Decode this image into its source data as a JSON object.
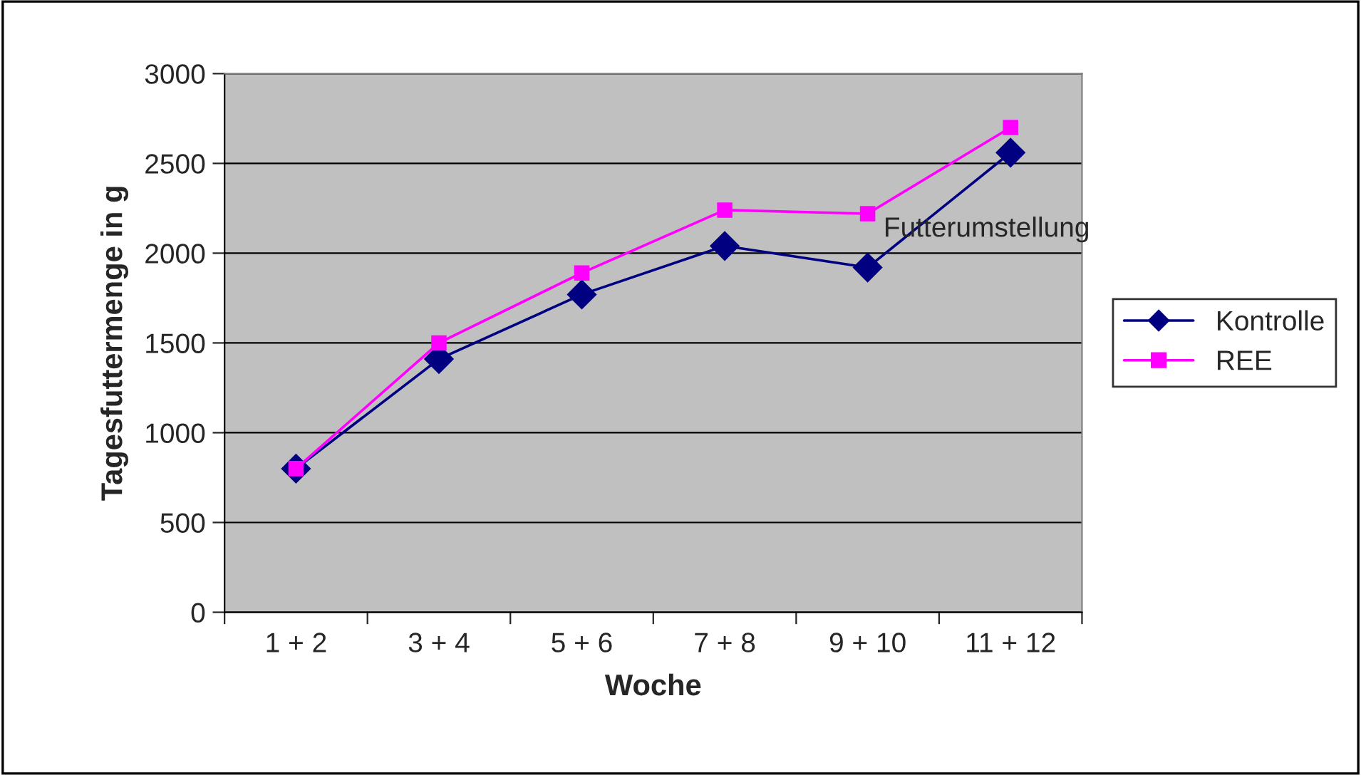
{
  "chart_data": {
    "type": "line",
    "xlabel": "Woche",
    "ylabel": "Tagesfuttermenge in g",
    "categories": [
      "1 + 2",
      "3 + 4",
      "5 + 6",
      "7 + 8",
      "9 + 10",
      "11 + 12"
    ],
    "series": [
      {
        "name": "Kontrolle",
        "color": "#000080",
        "marker": "diamond",
        "values": [
          800,
          1410,
          1770,
          2040,
          1920,
          2560
        ]
      },
      {
        "name": "REE",
        "color": "#ff00ff",
        "marker": "square",
        "values": [
          800,
          1500,
          1890,
          2240,
          2220,
          2700
        ]
      }
    ],
    "ylim": [
      0,
      3000
    ],
    "yticks": [
      0,
      500,
      1000,
      1500,
      2000,
      2500,
      3000
    ],
    "grid": "y",
    "legend": "right",
    "line_style": "solid",
    "annotations": [
      {
        "text": "Futterumstellung",
        "x": "9 + 10",
        "y": 2220
      }
    ]
  }
}
